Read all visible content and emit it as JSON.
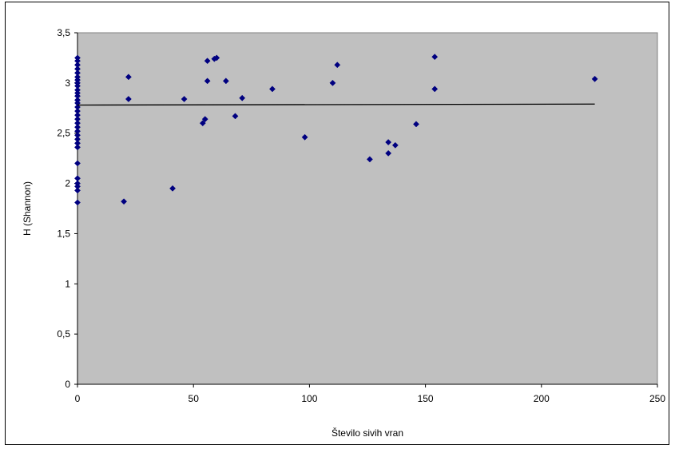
{
  "chart_data": {
    "type": "scatter",
    "title": "",
    "xlabel": "Število sivih vran",
    "ylabel": "H (Shannon)",
    "xlim": [
      0,
      250
    ],
    "ylim": [
      0,
      3.5
    ],
    "x_ticks": [
      0,
      50,
      100,
      150,
      200,
      250
    ],
    "y_ticks": [
      0,
      0.5,
      1,
      1.5,
      2,
      2.5,
      3,
      3.5
    ],
    "x_tick_labels": [
      "0",
      "50",
      "100",
      "150",
      "200",
      "250"
    ],
    "y_tick_labels": [
      "0",
      "0,5",
      "1",
      "1,5",
      "2",
      "2,5",
      "3",
      "3,5"
    ],
    "grid": false,
    "legend": "none",
    "colors": {
      "plot_background": "#c0c0c0",
      "marker": "#000080",
      "trendline": "#000000"
    },
    "trendline": {
      "x": [
        0,
        223
      ],
      "y": [
        2.78,
        2.79
      ]
    },
    "points": [
      {
        "x": 0,
        "y": 3.25
      },
      {
        "x": 0,
        "y": 3.22
      },
      {
        "x": 0,
        "y": 3.18
      },
      {
        "x": 0,
        "y": 3.14
      },
      {
        "x": 0,
        "y": 3.1
      },
      {
        "x": 0,
        "y": 3.06
      },
      {
        "x": 0,
        "y": 3.03
      },
      {
        "x": 0,
        "y": 3.0
      },
      {
        "x": 0,
        "y": 2.97
      },
      {
        "x": 0,
        "y": 2.93
      },
      {
        "x": 0,
        "y": 2.9
      },
      {
        "x": 0,
        "y": 2.87
      },
      {
        "x": 0,
        "y": 2.83
      },
      {
        "x": 0,
        "y": 2.8
      },
      {
        "x": 0,
        "y": 2.76
      },
      {
        "x": 0,
        "y": 2.72
      },
      {
        "x": 0,
        "y": 2.68
      },
      {
        "x": 0,
        "y": 2.64
      },
      {
        "x": 0,
        "y": 2.6
      },
      {
        "x": 0,
        "y": 2.56
      },
      {
        "x": 0,
        "y": 2.52
      },
      {
        "x": 0,
        "y": 2.48
      },
      {
        "x": 0,
        "y": 2.44
      },
      {
        "x": 0,
        "y": 2.4
      },
      {
        "x": 0,
        "y": 2.36
      },
      {
        "x": 0,
        "y": 2.2
      },
      {
        "x": 0,
        "y": 2.05
      },
      {
        "x": 0,
        "y": 2.0
      },
      {
        "x": 0,
        "y": 1.97
      },
      {
        "x": 0,
        "y": 1.93
      },
      {
        "x": 0,
        "y": 1.81
      },
      {
        "x": 20,
        "y": 1.82
      },
      {
        "x": 22,
        "y": 3.06
      },
      {
        "x": 22,
        "y": 2.84
      },
      {
        "x": 41,
        "y": 1.95
      },
      {
        "x": 46,
        "y": 2.84
      },
      {
        "x": 54,
        "y": 2.6
      },
      {
        "x": 55,
        "y": 2.64
      },
      {
        "x": 56,
        "y": 3.22
      },
      {
        "x": 56,
        "y": 3.02
      },
      {
        "x": 59,
        "y": 3.24
      },
      {
        "x": 60,
        "y": 3.25
      },
      {
        "x": 64,
        "y": 3.02
      },
      {
        "x": 68,
        "y": 2.67
      },
      {
        "x": 71,
        "y": 2.85
      },
      {
        "x": 84,
        "y": 2.94
      },
      {
        "x": 98,
        "y": 2.46
      },
      {
        "x": 110,
        "y": 3.0
      },
      {
        "x": 112,
        "y": 3.18
      },
      {
        "x": 126,
        "y": 2.24
      },
      {
        "x": 134,
        "y": 2.41
      },
      {
        "x": 134,
        "y": 2.3
      },
      {
        "x": 137,
        "y": 2.38
      },
      {
        "x": 146,
        "y": 2.59
      },
      {
        "x": 154,
        "y": 3.26
      },
      {
        "x": 154,
        "y": 2.94
      },
      {
        "x": 223,
        "y": 3.04
      }
    ]
  }
}
